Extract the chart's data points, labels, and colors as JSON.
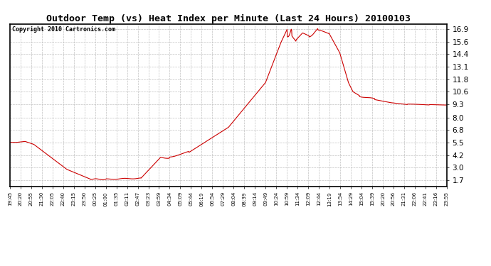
{
  "title": "Outdoor Temp (vs) Heat Index per Minute (Last 24 Hours) 20100103",
  "copyright": "Copyright 2010 Cartronics.com",
  "line_color": "#cc0000",
  "bg_color": "#ffffff",
  "plot_bg_color": "#ffffff",
  "grid_color": "#bbbbbb",
  "yticks": [
    1.7,
    3.0,
    4.2,
    5.5,
    6.8,
    8.0,
    9.3,
    10.6,
    11.8,
    13.1,
    14.4,
    15.6,
    16.9
  ],
  "ylim": [
    1.1,
    17.4
  ],
  "x_labels": [
    "19:45",
    "20:20",
    "20:55",
    "21:30",
    "22:05",
    "22:40",
    "23:15",
    "23:50",
    "00:25",
    "01:00",
    "01:35",
    "02:11",
    "02:47",
    "03:23",
    "03:59",
    "04:34",
    "05:09",
    "05:44",
    "06:19",
    "06:54",
    "07:29",
    "08:04",
    "08:39",
    "09:14",
    "09:49",
    "10:24",
    "10:59",
    "11:34",
    "12:09",
    "12:44",
    "13:19",
    "13:54",
    "14:29",
    "15:04",
    "15:39",
    "20:20",
    "20:56",
    "21:31",
    "22:06",
    "22:41",
    "23:16",
    "23:55"
  ],
  "n_data": 1440,
  "figsize": [
    6.9,
    3.75
  ],
  "dpi": 100
}
